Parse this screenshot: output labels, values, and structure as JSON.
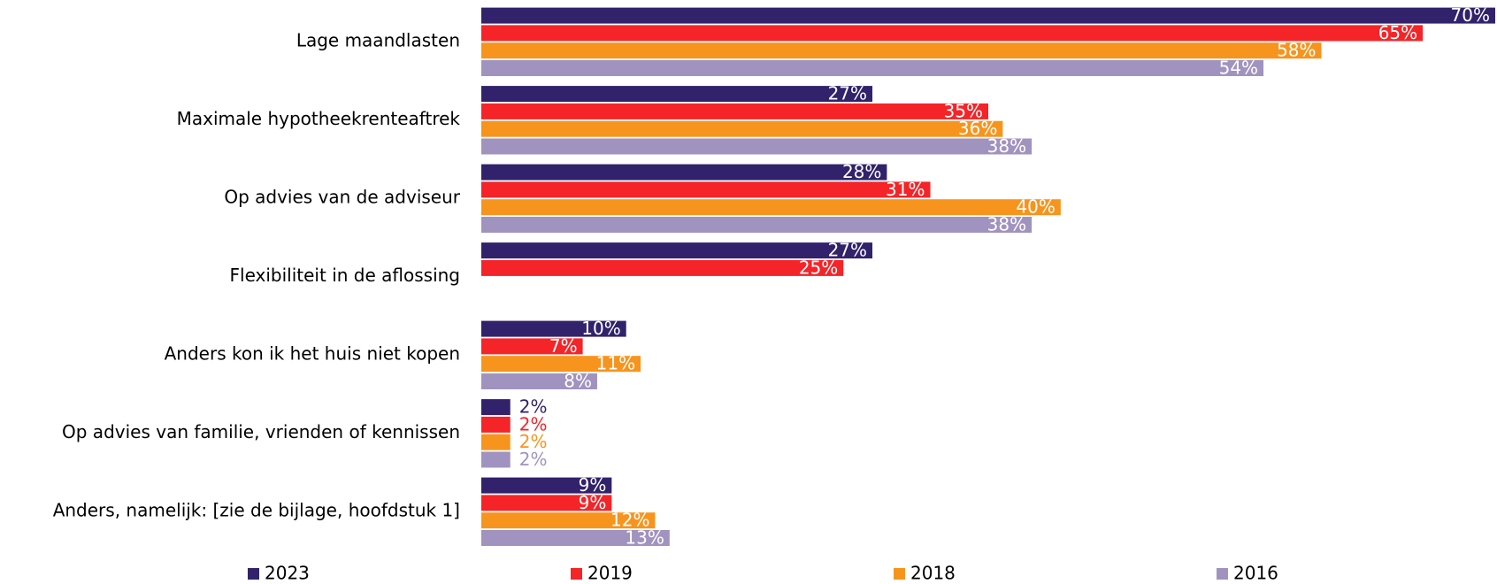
{
  "chart_data": {
    "type": "bar",
    "orientation": "horizontal",
    "categories": [
      "Lage maandlasten",
      "Maximale hypotheekrenteaftrek",
      "Op advies van de adviseur",
      "Flexibiliteit in de aflossing",
      "Anders kon ik het huis niet kopen",
      "Op advies van familie, vrienden of kennissen",
      "Anders, namelijk: [zie de bijlage, hoofdstuk 1]"
    ],
    "series": [
      {
        "name": "2023",
        "color": "#31226b",
        "values": [
          70,
          27,
          28,
          27,
          10,
          2,
          9
        ],
        "value_labels": [
          "70%",
          "27%",
          "28%",
          "27%",
          "10%",
          "2%",
          "9%"
        ]
      },
      {
        "name": "2019",
        "color": "#f42428",
        "values": [
          65,
          35,
          31,
          25,
          7,
          2,
          9
        ],
        "value_labels": [
          "65%",
          "35%",
          "31%",
          "25%",
          "7%",
          "2%",
          "9%"
        ]
      },
      {
        "name": "2018",
        "color": "#f7941d",
        "values": [
          58,
          36,
          40,
          null,
          11,
          2,
          12
        ],
        "value_labels": [
          "58%",
          "36%",
          "40%",
          null,
          "11%",
          "2%",
          "12%"
        ]
      },
      {
        "name": "2016",
        "color": "#a193bf",
        "values": [
          54,
          38,
          38,
          null,
          8,
          2,
          13
        ],
        "value_labels": [
          "54%",
          "38%",
          "38%",
          null,
          "8%",
          "2%",
          "13%"
        ]
      }
    ],
    "legend": "bottom"
  }
}
